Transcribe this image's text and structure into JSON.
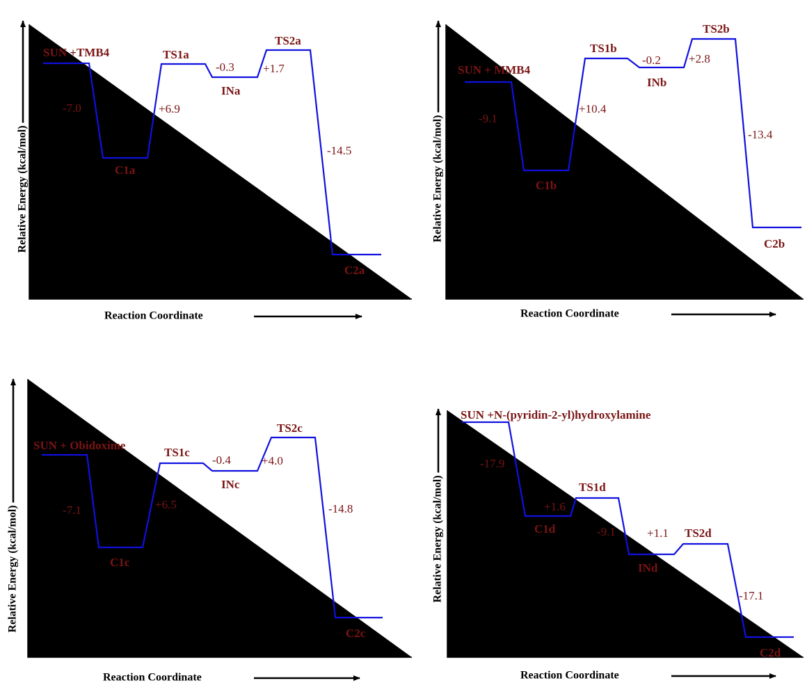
{
  "panels": [
    {
      "y_label": "Relative Energy (kcal/mol)",
      "x_label": "Reaction Coordinate",
      "states": [
        "SUN +TMB4",
        "C1a",
        "TS1a",
        "INa",
        "TS2a",
        "C2a"
      ],
      "changes": [
        "-7.0",
        "+6.9",
        "-0.3",
        "+1.7",
        "-14.5"
      ]
    },
    {
      "y_label": "Relative Energy (kcal/mol)",
      "x_label": "Reaction Coordinate",
      "states": [
        "SUN + MMB4",
        "C1b",
        "TS1b",
        "INb",
        "TS2b",
        "C2b"
      ],
      "changes": [
        "-9.1",
        "+10.4",
        "-0.2",
        "+2.8",
        "-13.4"
      ]
    },
    {
      "y_label": "Relative Energy (kcal/mol)",
      "x_label": "Reaction Coordinate",
      "states": [
        "SUN + Obidoxime",
        "C1c",
        "TS1c",
        "INc",
        "TS2c",
        "C2c"
      ],
      "changes": [
        "-7.1",
        "+6.5",
        "-0.4",
        "+4.0",
        "-14.8"
      ]
    },
    {
      "y_label": "Relative Energy (kcal/mol)",
      "x_label": "Reaction Coordinate",
      "states": [
        "SUN +N-(pyridin-2-yl)hydroxylamine",
        "C1d",
        "TS1d",
        "INd",
        "TS2d",
        "C2d"
      ],
      "changes": [
        "-17.9",
        "+1.6",
        "-9.1",
        "+1.1",
        "-17.1"
      ]
    }
  ]
}
